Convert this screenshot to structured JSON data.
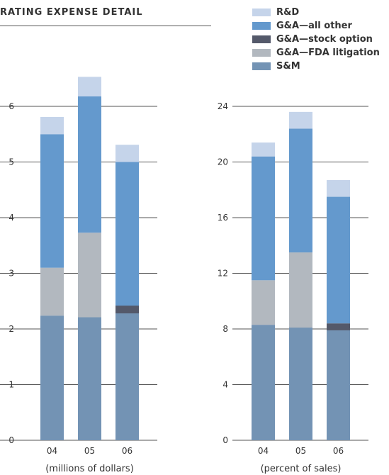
{
  "title": "RATING EXPENSE DETAIL",
  "legend": [
    {
      "label": "R&D",
      "color": "#c5d4ea"
    },
    {
      "label": "G&A—all other",
      "color": "#6499cd"
    },
    {
      "label": "G&A—stock option",
      "color": "#54596a"
    },
    {
      "label": "G&A—FDA litigation",
      "color": "#b2b8bf"
    },
    {
      "label": "S&M",
      "color": "#7393b4"
    }
  ],
  "chart_data": [
    {
      "type": "bar",
      "stacked": true,
      "categories": [
        "04",
        "05",
        "06"
      ],
      "xlabel": "(millions of dollars)",
      "ylim": [
        0,
        7
      ],
      "yticks": [
        0,
        1,
        2,
        3,
        4,
        5,
        6
      ],
      "grid": true,
      "series": [
        {
          "name": "S&M",
          "values": [
            2.24,
            2.21,
            2.28
          ]
        },
        {
          "name": "G&A—FDA litigation",
          "values": [
            0.86,
            1.52,
            0
          ]
        },
        {
          "name": "G&A—stock option",
          "values": [
            0,
            0,
            0.14
          ]
        },
        {
          "name": "G&A—all other",
          "values": [
            2.4,
            2.45,
            2.58
          ]
        },
        {
          "name": "R&D",
          "values": [
            0.31,
            0.35,
            0.31
          ]
        }
      ]
    },
    {
      "type": "bar",
      "stacked": true,
      "categories": [
        "04",
        "05",
        "06"
      ],
      "xlabel": "(percent of sales)",
      "ylim": [
        0,
        28
      ],
      "yticks": [
        0,
        4,
        8,
        12,
        16,
        20,
        24
      ],
      "grid": true,
      "series": [
        {
          "name": "S&M",
          "values": [
            8.3,
            8.1,
            7.9
          ]
        },
        {
          "name": "G&A—FDA litigation",
          "values": [
            3.2,
            5.4,
            0
          ]
        },
        {
          "name": "G&A—stock option",
          "values": [
            0,
            0,
            0.5
          ]
        },
        {
          "name": "G&A—all other",
          "values": [
            8.9,
            8.9,
            9.1
          ]
        },
        {
          "name": "R&D",
          "values": [
            1.0,
            1.2,
            1.2
          ]
        }
      ]
    }
  ]
}
